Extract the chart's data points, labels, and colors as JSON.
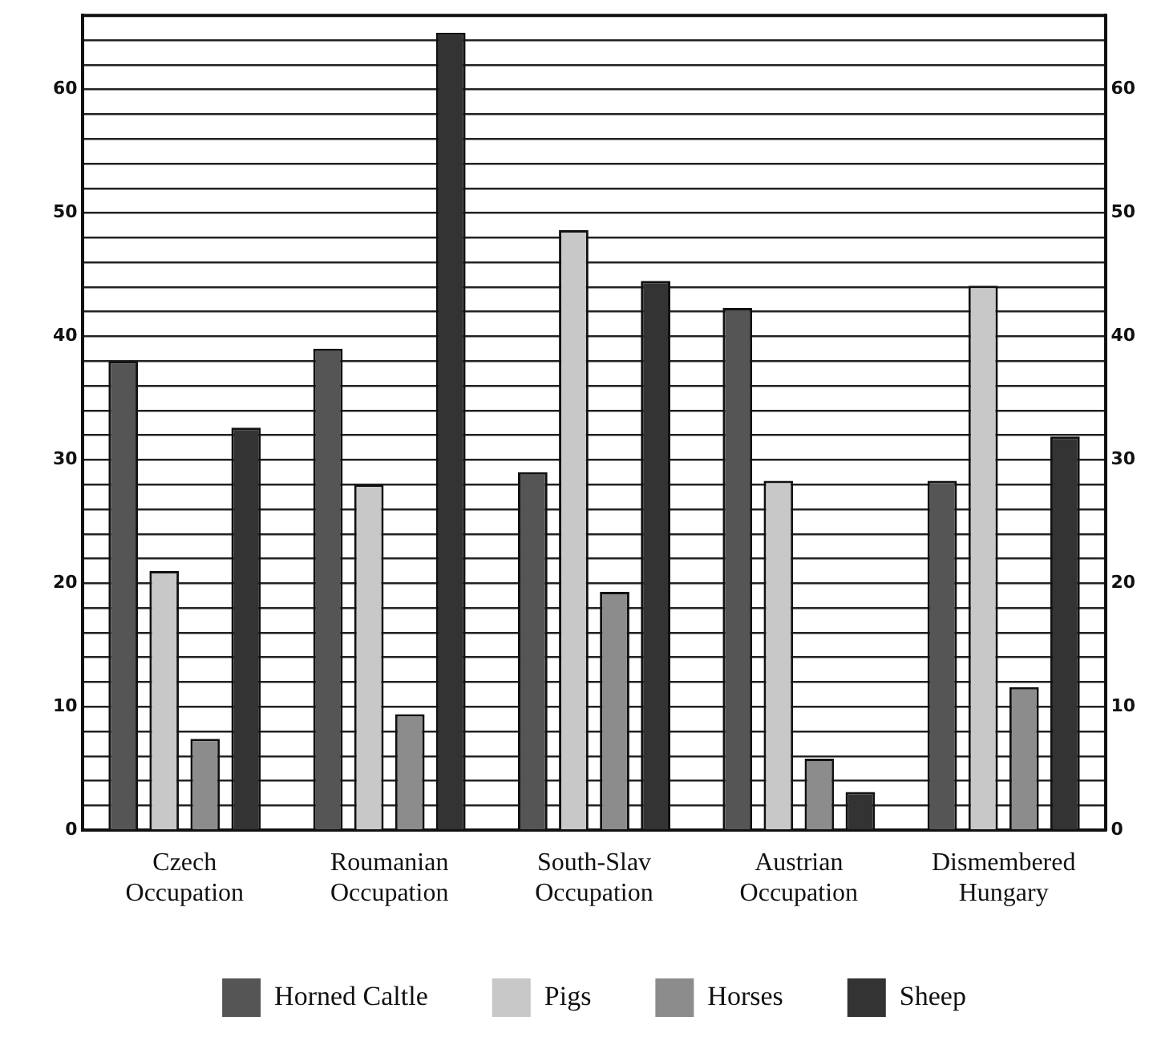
{
  "chart_data": {
    "type": "bar",
    "categories": [
      "Czech Occupation",
      "Roumanian Occupation",
      "South-Slav Occupation",
      "Austrian Occupation",
      "Dismembered Hungary"
    ],
    "series": [
      {
        "name": "Horned Caltle",
        "color": "#555555",
        "values": [
          38,
          39,
          29,
          42.3,
          28.3
        ]
      },
      {
        "name": "Pigs",
        "color": "#c8c8c8",
        "values": [
          21,
          28,
          48.6,
          28.3,
          44.1
        ]
      },
      {
        "name": "Horses",
        "color": "#8c8c8c",
        "values": [
          7.4,
          9.4,
          19.3,
          5.8,
          11.6
        ]
      },
      {
        "name": "Sheep",
        "color": "#333333",
        "values": [
          32.6,
          64.6,
          44.5,
          3.1,
          31.9
        ]
      }
    ],
    "ylim": [
      0,
      66
    ],
    "yticks": [
      0,
      {
        "value": 2,
        "label": null
      },
      {
        "value": 4,
        "label": null
      },
      {
        "value": 6,
        "label": null
      },
      {
        "value": 8,
        "label": null
      },
      10,
      {
        "value": 12,
        "label": null
      },
      {
        "value": 14,
        "label": null
      },
      {
        "value": 16,
        "label": null
      },
      {
        "value": 18,
        "label": null
      },
      20,
      {
        "value": 22,
        "label": null
      },
      {
        "value": 24,
        "label": null
      },
      {
        "value": 26,
        "label": null
      },
      {
        "value": 28,
        "label": null
      },
      30,
      {
        "value": 32,
        "label": null
      },
      {
        "value": 34,
        "label": null
      },
      {
        "value": 36,
        "label": null
      },
      {
        "value": 38,
        "label": null
      },
      40,
      {
        "value": 42,
        "label": null
      },
      {
        "value": 44,
        "label": null
      },
      {
        "value": 46,
        "label": null
      },
      {
        "value": 48,
        "label": null
      },
      50,
      {
        "value": 52,
        "label": null
      },
      {
        "value": 54,
        "label": null
      },
      {
        "value": 56,
        "label": null
      },
      {
        "value": 58,
        "label": null
      },
      60,
      {
        "value": 62,
        "label": null
      },
      {
        "value": 64,
        "label": null
      }
    ],
    "y2lim": [
      0,
      66
    ],
    "y2ticks": [
      0,
      {
        "value": 10,
        "label": "10"
      },
      20,
      30,
      40,
      50,
      60
    ],
    "grid": "y",
    "legend": "bottom"
  }
}
